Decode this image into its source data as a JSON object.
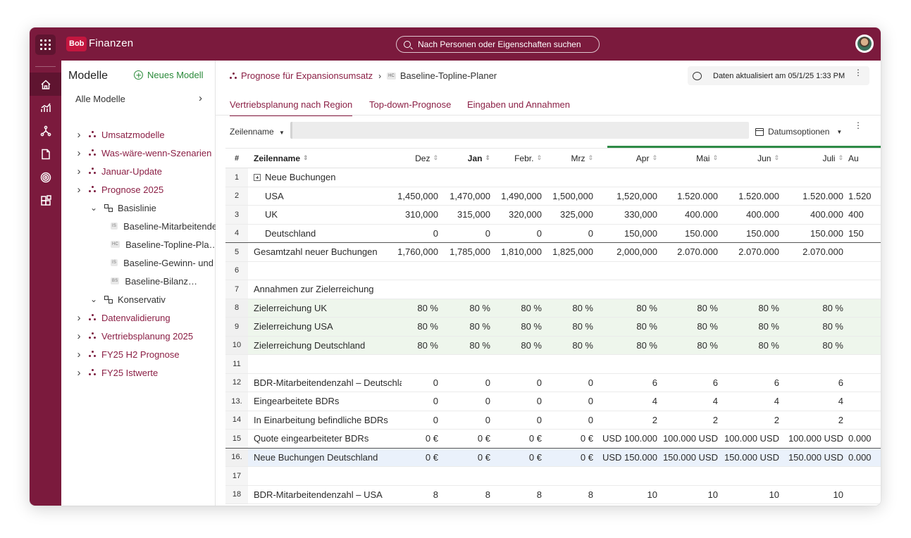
{
  "app": {
    "brand_logo": "Bob",
    "brand_name": "Finanzen",
    "search_placeholder": "Nach Personen oder Eigenschaften suchen"
  },
  "rail_icons": [
    "home-icon",
    "chart-icon",
    "models-icon",
    "document-icon",
    "target-icon",
    "blocks-icon"
  ],
  "sidebar": {
    "title": "Modelle",
    "new_model": "Neues Modell",
    "all_models": "Alle Modelle",
    "items": [
      {
        "type": "model",
        "label": "Umsatzmodelle",
        "chevron": "›"
      },
      {
        "type": "model",
        "label": "Was-wäre-wenn-Szenarien",
        "chevron": "›"
      },
      {
        "type": "model",
        "label": "Januar-Update",
        "chevron": "›"
      },
      {
        "type": "model",
        "label": "Prognose 2025",
        "chevron": "›"
      },
      {
        "type": "branch",
        "label": "Basislinie",
        "chevron": "⌄"
      },
      {
        "type": "sheet",
        "tag": "IS",
        "label": "Baseline-Mitarbeitendenzahl"
      },
      {
        "type": "sheet",
        "tag": "HC",
        "label": "Baseline-Topline-Pla…"
      },
      {
        "type": "sheet",
        "tag": "IS",
        "label": "Baseline-Gewinn- und Verlustrechnung"
      },
      {
        "type": "sheet",
        "tag": "BS",
        "label": "Baseline-Bilanz…"
      },
      {
        "type": "branch",
        "label": "Konservativ",
        "chevron": "⌄"
      },
      {
        "type": "model",
        "label": "Datenvalidierung",
        "chevron": "›"
      },
      {
        "type": "model",
        "label": "Vertriebsplanung 2025",
        "chevron": "›"
      },
      {
        "type": "model",
        "label": "FY25 H2 Prognose",
        "chevron": "›"
      },
      {
        "type": "model",
        "label": "FY25 Istwerte",
        "chevron": "›"
      }
    ]
  },
  "breadcrumb": {
    "parent": "Prognose für Expansionsumsatz",
    "tag": "HC",
    "current": "Baseline-Topline-Planer"
  },
  "status": {
    "updated": "Daten aktualisiert am 05/1/25 1:33 PM"
  },
  "tabs": [
    "Vertriebsplanung nach Region",
    "Top-down-Prognose",
    "Eingaben und Annahmen"
  ],
  "toolbar": {
    "row_name_label": "Zeilenname",
    "date_options": "Datumsoptionen"
  },
  "table": {
    "index_header": "#",
    "name_header": "Zeilenname",
    "columns": [
      "Dez",
      "Jan",
      "Febr.",
      "Mrz",
      "Apr",
      "Mai",
      "Jun",
      "Juli",
      "Au"
    ],
    "rows": [
      {
        "idx": "1",
        "name": "Neue Buchungen",
        "expand": true,
        "indent": false,
        "values": [
          "",
          "",
          "",
          "",
          "",
          "",
          "",
          "",
          ""
        ]
      },
      {
        "idx": "2",
        "name": "USA",
        "indent": true,
        "values": [
          "1,450,000",
          "1,470,000",
          "1,490,000",
          "1,500,000",
          "1,520,000",
          "1.520.000",
          "1.520.000",
          "1.520.000",
          "1.520"
        ]
      },
      {
        "idx": "3",
        "name": "UK",
        "indent": true,
        "values": [
          "310,000",
          "315,000",
          "320,000",
          "325,000",
          "330,000",
          "400.000",
          "400.000",
          "400.000",
          "400"
        ]
      },
      {
        "idx": "4",
        "name": "Deutschland",
        "indent": true,
        "thick": true,
        "values": [
          "0",
          "0",
          "0",
          "0",
          "150,000",
          "150.000",
          "150.000",
          "150.000",
          "150"
        ]
      },
      {
        "idx": "5",
        "name": "Gesamtzahl neuer Buchungen",
        "values": [
          "1,760,000",
          "1,785,000",
          "1,810,000",
          "1,825,000",
          "2,000,000",
          "2.070.000",
          "2.070.000",
          "2.070.000",
          ""
        ]
      },
      {
        "idx": "6",
        "name": "",
        "values": [
          "",
          "",
          "",
          "",
          "",
          "",
          "",
          "",
          ""
        ]
      },
      {
        "idx": "7",
        "name": "Annahmen zur Zielerreichung",
        "values": [
          "",
          "",
          "",
          "",
          "",
          "",
          "",
          "",
          ""
        ]
      },
      {
        "idx": "8",
        "name": "Zielerreichung UK",
        "green": true,
        "values": [
          "80 %",
          "80 %",
          "80 %",
          "80 %",
          "80 %",
          "80 %",
          "80 %",
          "80 %",
          ""
        ]
      },
      {
        "idx": "9",
        "name": "Zielerreichung USA",
        "green": true,
        "values": [
          "80 %",
          "80 %",
          "80 %",
          "80 %",
          "80 %",
          "80 %",
          "80 %",
          "80 %",
          ""
        ]
      },
      {
        "idx": "10",
        "name": "Zielerreichung Deutschland",
        "green": true,
        "values": [
          "80 %",
          "80 %",
          "80 %",
          "80 %",
          "80 %",
          "80 %",
          "80 %",
          "80 %",
          ""
        ]
      },
      {
        "idx": "11",
        "name": "",
        "values": [
          "",
          "",
          "",
          "",
          "",
          "",
          "",
          "",
          ""
        ]
      },
      {
        "idx": "12",
        "name": "BDR-Mitarbeitendenzahl – Deutschland",
        "values": [
          "0",
          "0",
          "0",
          "0",
          "6",
          "6",
          "6",
          "6",
          ""
        ]
      },
      {
        "idx": "13.",
        "name": "Eingearbeitete BDRs",
        "values": [
          "0",
          "0",
          "0",
          "0",
          "4",
          "4",
          "4",
          "4",
          ""
        ]
      },
      {
        "idx": "14",
        "name": "In Einarbeitung befindliche BDRs",
        "values": [
          "0",
          "0",
          "0",
          "0",
          "2",
          "2",
          "2",
          "2",
          ""
        ]
      },
      {
        "idx": "15",
        "name": "Quote eingearbeiteter BDRs",
        "thick": true,
        "values": [
          "0 €",
          "0 €",
          "0 €",
          "0 €",
          "USD 100.000",
          "100.000 USD",
          "100.000 USD",
          "100.000 USD",
          "0.000"
        ]
      },
      {
        "idx": "16.",
        "name": "Neue Buchungen Deutschland",
        "blue": true,
        "values": [
          "0 €",
          "0 €",
          "0 €",
          "0 €",
          "USD 150.000",
          "150.000 USD",
          "150.000 USD",
          "150.000 USD",
          "0.000"
        ]
      },
      {
        "idx": "17",
        "name": "",
        "values": [
          "",
          "",
          "",
          "",
          "",
          "",
          "",
          "",
          ""
        ]
      },
      {
        "idx": "18",
        "name": "BDR-Mitarbeitendenzahl – USA",
        "values": [
          "8",
          "8",
          "8",
          "8",
          "10",
          "10",
          "10",
          "10",
          ""
        ]
      }
    ]
  }
}
